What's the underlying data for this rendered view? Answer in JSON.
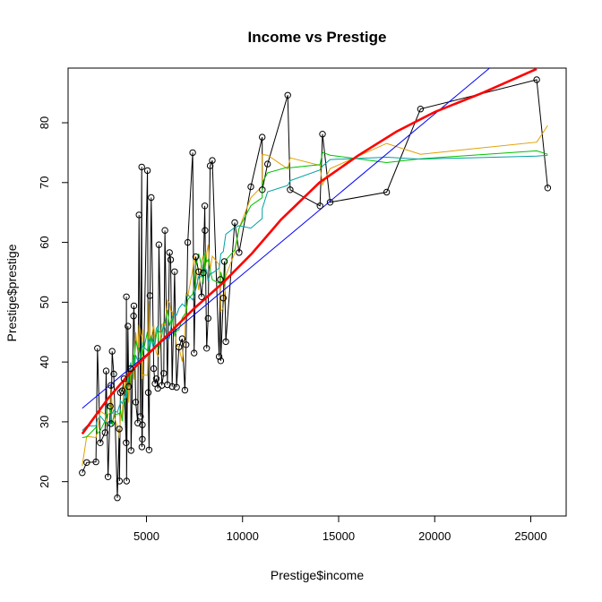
{
  "chart_data": {
    "type": "scatter",
    "title": "Income vs Prestige",
    "xlabel": "Prestige$income",
    "ylabel": "Prestige$prestige",
    "xlim": [
      921,
      26841
    ],
    "ylim": [
      14.26,
      89.14
    ],
    "xticks": [
      5000,
      10000,
      15000,
      20000,
      25000
    ],
    "xtick_labels": [
      "5000",
      "10000",
      "15000",
      "20000",
      "25000"
    ],
    "yticks": [
      20,
      30,
      40,
      50,
      60,
      70,
      80
    ],
    "ytick_labels": [
      "20",
      "30",
      "40",
      "50",
      "60",
      "70",
      "80"
    ],
    "grid": false,
    "legend": "none",
    "points": [
      [
        1656,
        21.5
      ],
      [
        1890,
        23.2
      ],
      [
        2370,
        23.3
      ],
      [
        2448,
        42.3
      ],
      [
        2594,
        26.5
      ],
      [
        2847,
        28.2
      ],
      [
        2901,
        38.5
      ],
      [
        3000,
        20.8
      ],
      [
        3116,
        32.6
      ],
      [
        3148,
        36.1
      ],
      [
        3161,
        29.7
      ],
      [
        3214,
        41.8
      ],
      [
        3300,
        38.0
      ],
      [
        3485,
        17.3
      ],
      [
        3582,
        28.8
      ],
      [
        3595,
        20.1
      ],
      [
        3643,
        34.9
      ],
      [
        3739,
        35.2
      ],
      [
        3828,
        37.2
      ],
      [
        3942,
        26.5
      ],
      [
        3956,
        50.9
      ],
      [
        3965,
        20.1
      ],
      [
        4036,
        46.0
      ],
      [
        4075,
        35.9
      ],
      [
        4179,
        38.9
      ],
      [
        4199,
        25.2
      ],
      [
        4330,
        47.7
      ],
      [
        4348,
        49.4
      ],
      [
        4443,
        33.3
      ],
      [
        4549,
        29.8
      ],
      [
        4614,
        64.6
      ],
      [
        4686,
        30.9
      ],
      [
        4753,
        72.6
      ],
      [
        4761,
        25.8
      ],
      [
        4784,
        27.1
      ],
      [
        4787,
        29.5
      ],
      [
        5052,
        72.0
      ],
      [
        5092,
        34.9
      ],
      [
        5134,
        25.3
      ],
      [
        5180,
        51.1
      ],
      [
        5249,
        67.5
      ],
      [
        5380,
        38.9
      ],
      [
        5449,
        36.4
      ],
      [
        5511,
        37.2
      ],
      [
        5594,
        35.6
      ],
      [
        5648,
        59.6
      ],
      [
        5795,
        36.1
      ],
      [
        5902,
        38.1
      ],
      [
        5960,
        62.0
      ],
      [
        6092,
        36.2
      ],
      [
        6197,
        58.3
      ],
      [
        6259,
        57.1
      ],
      [
        6336,
        35.9
      ],
      [
        6462,
        55.1
      ],
      [
        6565,
        35.8
      ],
      [
        6686,
        42.5
      ],
      [
        6860,
        43.9
      ],
      [
        7000,
        35.3
      ],
      [
        7059,
        42.9
      ],
      [
        7147,
        60.0
      ],
      [
        7405,
        75.0
      ],
      [
        7482,
        41.5
      ],
      [
        7562,
        57.6
      ],
      [
        7716,
        55.1
      ],
      [
        7869,
        50.9
      ],
      [
        7956,
        54.9
      ],
      [
        8034,
        66.1
      ],
      [
        8049,
        62.0
      ],
      [
        8131,
        42.3
      ],
      [
        8206,
        47.3
      ],
      [
        8316,
        72.8
      ],
      [
        8425,
        73.7
      ],
      [
        8780,
        40.9
      ],
      [
        8845,
        53.8
      ],
      [
        8865,
        40.2
      ],
      [
        9000,
        50.7
      ],
      [
        9054,
        56.8
      ],
      [
        9130,
        43.4
      ],
      [
        9593,
        63.3
      ],
      [
        9822,
        58.3
      ],
      [
        10432,
        69.3
      ],
      [
        11023,
        77.6
      ],
      [
        11030,
        68.8
      ],
      [
        11304,
        73.1
      ],
      [
        12480,
        68.8
      ],
      [
        12351,
        84.6
      ],
      [
        14032,
        66.1
      ],
      [
        14163,
        78.1
      ],
      [
        14558,
        66.7
      ],
      [
        17498,
        68.4
      ],
      [
        19263,
        82.3
      ],
      [
        25308,
        87.2
      ],
      [
        25879,
        69.1
      ]
    ],
    "series": [
      {
        "kind": "linear",
        "color": "#0000ff",
        "x": [
          1656,
          25879
        ],
        "y": [
          32.27,
          97.26
        ]
      },
      {
        "kind": "smooth",
        "color": "#ff0000",
        "x": [
          1656,
          3000,
          4500,
          6000,
          7500,
          9000,
          10500,
          12000,
          14000,
          16000,
          18000,
          20000,
          22500,
          25308
        ],
        "y": [
          28.0,
          33.9,
          39.5,
          44.2,
          49.0,
          53.3,
          58.2,
          63.8,
          70.0,
          74.5,
          78.5,
          81.8,
          85.0,
          89.0
        ]
      }
    ]
  }
}
